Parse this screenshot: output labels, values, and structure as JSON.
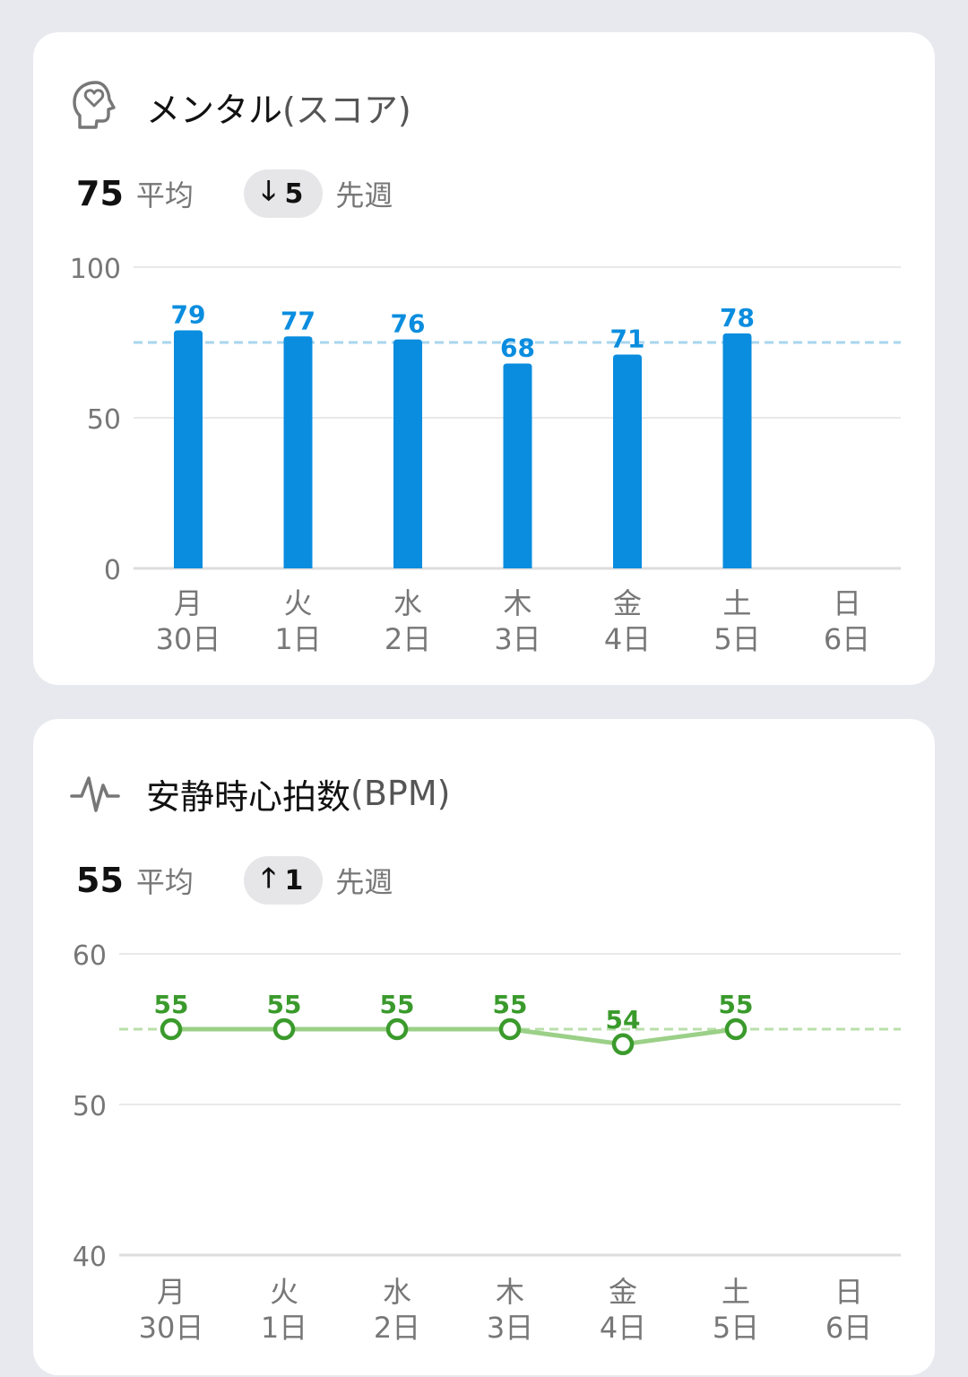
{
  "mental": {
    "title": "メンタル",
    "unit": "(スコア)",
    "avg_value": "75",
    "avg_label": "平均",
    "delta_value": "5",
    "delta_direction": "down",
    "delta_label": "先週",
    "icon": "head-heart-icon",
    "accent_color": "#0a8ddf"
  },
  "heart_rate": {
    "title": "安静時心拍数",
    "unit": "(BPM)",
    "avg_value": "55",
    "avg_label": "平均",
    "delta_value": "1",
    "delta_direction": "up",
    "delta_label": "先週",
    "icon": "heartbeat-icon",
    "accent_color": "#3a9a2c"
  },
  "chart_data": [
    {
      "type": "bar",
      "categories": [
        "月\n30日",
        "火\n1日",
        "水\n2日",
        "木\n3日",
        "金\n4日",
        "土\n5日",
        "日\n6日"
      ],
      "values": [
        79,
        77,
        76,
        68,
        71,
        78,
        null
      ],
      "data_labels": [
        "79",
        "77",
        "76",
        "68",
        "71",
        "78",
        ""
      ],
      "average": 75,
      "ylim": [
        0,
        100
      ],
      "yticks": [
        0,
        50,
        100
      ],
      "grid": true,
      "color": "#0a8ddf",
      "average_line_color": "#a8d6ee"
    },
    {
      "type": "line",
      "categories": [
        "月\n30日",
        "火\n1日",
        "水\n2日",
        "木\n3日",
        "金\n4日",
        "土\n5日",
        "日\n6日"
      ],
      "values": [
        55,
        55,
        55,
        55,
        54,
        55,
        null
      ],
      "data_labels": [
        "55",
        "55",
        "55",
        "55",
        "54",
        "55",
        ""
      ],
      "average": 55,
      "ylim": [
        40,
        60
      ],
      "yticks": [
        40,
        50,
        60
      ],
      "grid": true,
      "color": "#3a9a2c",
      "line_color": "#9bd088",
      "average_line_color": "#b9dfab"
    }
  ]
}
